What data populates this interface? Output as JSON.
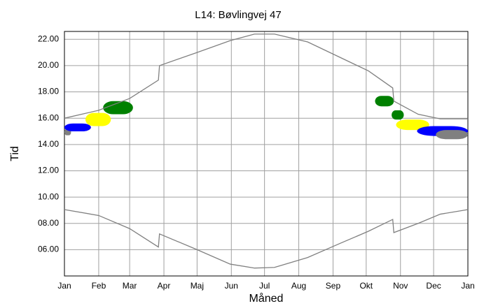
{
  "chart_data": {
    "type": "line",
    "title": "L14: Bøvlingvej 47",
    "x_label": "Måned",
    "y_label": "Tid",
    "xlim": [
      0,
      365
    ],
    "xticks": [
      {
        "value": 0,
        "label": "Jan"
      },
      {
        "value": 31,
        "label": "Feb"
      },
      {
        "value": 59,
        "label": "Mar"
      },
      {
        "value": 90,
        "label": "Apr"
      },
      {
        "value": 120,
        "label": "Maj"
      },
      {
        "value": 151,
        "label": "Jun"
      },
      {
        "value": 181,
        "label": "Jul"
      },
      {
        "value": 212,
        "label": "Aug"
      },
      {
        "value": 243,
        "label": "Sep"
      },
      {
        "value": 273,
        "label": "Okt"
      },
      {
        "value": 304,
        "label": "Nov"
      },
      {
        "value": 334,
        "label": "Dec"
      },
      {
        "value": 365,
        "label": "Jan"
      }
    ],
    "ylim": [
      4,
      22.6
    ],
    "yticks": [
      {
        "value": 6,
        "label": "06.00"
      },
      {
        "value": 8,
        "label": "08.00"
      },
      {
        "value": 10,
        "label": "10.00"
      },
      {
        "value": 12,
        "label": "12.00"
      },
      {
        "value": 14,
        "label": "14.00"
      },
      {
        "value": 16,
        "label": "16.00"
      },
      {
        "value": 18,
        "label": "18.00"
      },
      {
        "value": 20,
        "label": "20.00"
      },
      {
        "value": 22,
        "label": "22.00"
      }
    ],
    "grid": true,
    "series": [
      {
        "color": "#808080",
        "x": [
          0,
          31,
          59,
          85,
          86,
          120,
          150,
          172,
          190,
          220,
          250,
          275,
          297,
          298,
          320,
          340,
          365
        ],
        "values": [
          16.0,
          16.6,
          17.5,
          18.9,
          20.0,
          21.0,
          21.9,
          22.4,
          22.4,
          21.8,
          20.6,
          19.6,
          18.3,
          17.3,
          16.3,
          15.95,
          15.95
        ]
      },
      {
        "color": "#808080",
        "x": [
          0,
          31,
          59,
          85,
          86,
          120,
          150,
          172,
          190,
          220,
          250,
          275,
          297,
          298,
          320,
          340,
          365
        ],
        "values": [
          9.05,
          8.6,
          7.6,
          6.2,
          7.2,
          6.0,
          4.9,
          4.6,
          4.65,
          5.4,
          6.5,
          7.4,
          8.3,
          7.3,
          8.0,
          8.7,
          9.05
        ]
      }
    ],
    "shadow_areas": [
      {
        "color": "#808080",
        "x": [
          0,
          6
        ],
        "y": [
          14.7,
          15.2
        ]
      },
      {
        "color": "#0000ff",
        "x": [
          0,
          24
        ],
        "y": [
          15.0,
          15.6
        ]
      },
      {
        "color": "#ffff00",
        "x": [
          19,
          42
        ],
        "y": [
          15.4,
          16.4
        ]
      },
      {
        "color": "#008000",
        "x": [
          35,
          62
        ],
        "y": [
          16.3,
          17.3
        ]
      },
      {
        "color": "#008000",
        "x": [
          281,
          298
        ],
        "y": [
          16.9,
          17.7
        ]
      },
      {
        "color": "#008000",
        "x": [
          296,
          307
        ],
        "y": [
          15.9,
          16.6
        ]
      },
      {
        "color": "#ffff00",
        "x": [
          300,
          330
        ],
        "y": [
          15.1,
          15.9
        ]
      },
      {
        "color": "#0000ff",
        "x": [
          319,
          365
        ],
        "y": [
          14.65,
          15.4
        ]
      },
      {
        "color": "#808080",
        "x": [
          336,
          365
        ],
        "y": [
          14.4,
          15.1
        ]
      }
    ]
  }
}
